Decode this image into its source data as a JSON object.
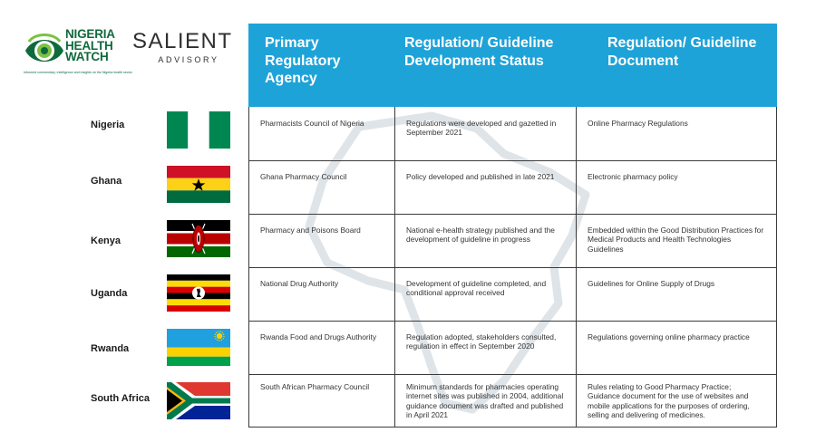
{
  "logos": {
    "nhw": {
      "line1": "NIGERIA",
      "line2": "HEALTH",
      "line3": "WATCH",
      "tagline": "Informed commentary, intelligence and insights on the Nigeria health sector",
      "color": "#0e6a3c"
    },
    "salient": {
      "name": "SALIENT",
      "sub": "ADVISORY"
    }
  },
  "table": {
    "header_color": "#1ea3d8",
    "headers": [
      "Primary Regulatory Agency",
      "Regulation/ Guideline Development Status",
      "Regulation/ Guideline Document"
    ],
    "rows": [
      {
        "country": "Nigeria",
        "agency": "Pharmacists Council of Nigeria",
        "status": "Regulations were developed and gazetted in September 2021",
        "document": "Online Pharmacy Regulations"
      },
      {
        "country": "Ghana",
        "agency": "Ghana Pharmacy Council",
        "status": "Policy developed and published in late 2021",
        "document": "Electronic pharmacy policy"
      },
      {
        "country": "Kenya",
        "agency": "Pharmacy and Poisons Board",
        "status": "National e-health strategy published and the development of guideline in progress",
        "document": "Embedded within the Good Distribution Practices for Medical Products and Health Technologies Guidelines"
      },
      {
        "country": "Uganda",
        "agency": "National Drug Authority",
        "status": "Development of guideline completed, and conditional approval received",
        "document": "Guidelines for Online Supply of Drugs"
      },
      {
        "country": "Rwanda",
        "agency": "Rwanda Food and Drugs Authority",
        "status": "Regulation adopted, stakeholders consulted, regulation in effect in September 2020",
        "document": "Regulations governing online pharmacy practice"
      },
      {
        "country": "South Africa",
        "agency": "South African Pharmacy Council",
        "status": "Minimum standards for pharmacies operating internet sites was published in 2004, additional guidance document was drafted and published in April 2021",
        "document": "Rules relating to Good Pharmacy Practice; Guidance document for the use of websites and mobile applications for the purposes of ordering, selling and delivering of medicines."
      }
    ]
  },
  "flags": [
    "nigeria-flag",
    "ghana-flag",
    "kenya-flag",
    "uganda-flag",
    "rwanda-flag",
    "south-africa-flag"
  ]
}
